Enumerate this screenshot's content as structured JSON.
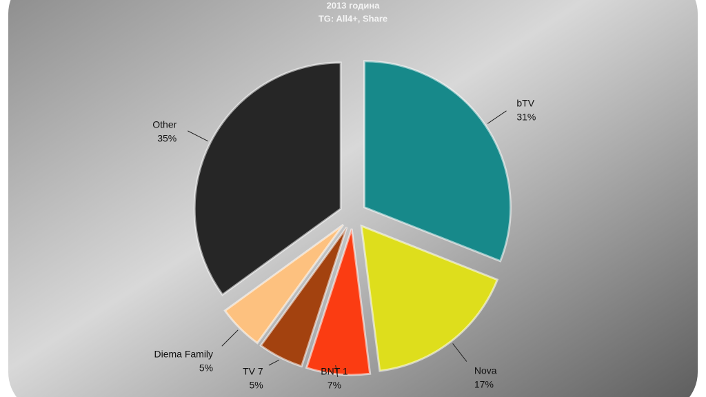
{
  "chart_data": {
    "type": "pie",
    "title": "2013 година",
    "subtitle": "TG: All4+, Share",
    "categories": [
      "bTV",
      "Nova",
      "BNT 1",
      "TV 7",
      "Diema Family",
      "Other"
    ],
    "values": [
      31,
      17,
      7,
      5,
      5,
      35
    ],
    "value_labels": [
      "31%",
      "17%",
      "7%",
      "5%",
      "5%",
      "35%"
    ],
    "colors": [
      "#17898a",
      "#dede1c",
      "#fb3c12",
      "#a3420f",
      "#fdc17f",
      "#262626"
    ]
  }
}
